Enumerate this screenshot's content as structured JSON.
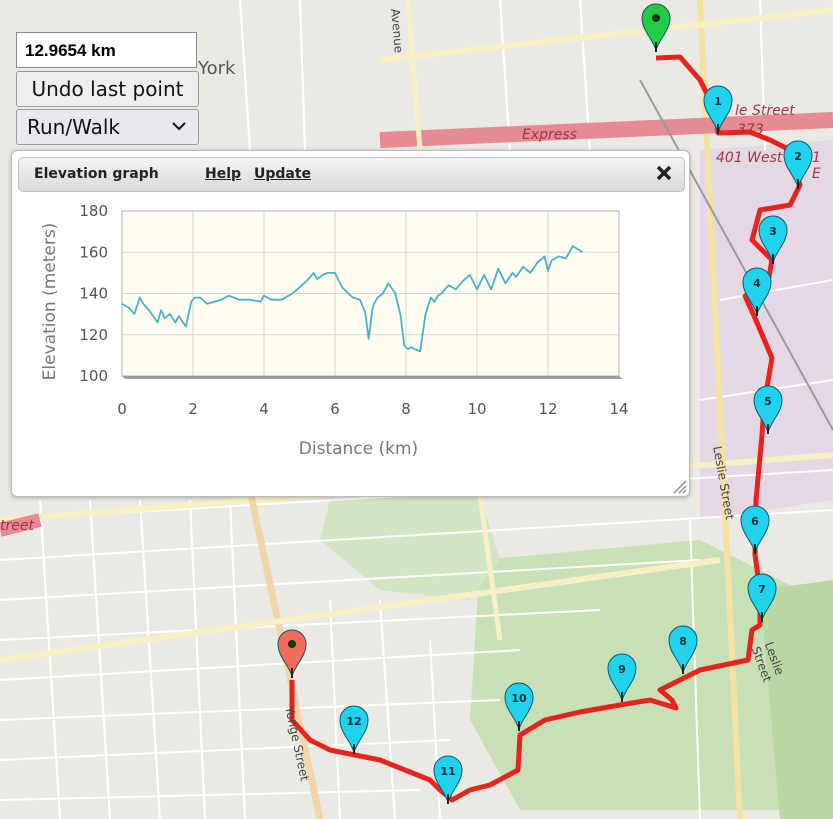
{
  "map": {
    "labels": {
      "york": "York",
      "avenue": "Avenue",
      "express": "Express",
      "le_street": "le Street",
      "route_373": "373",
      "route_401": "401 West",
      "street_left": "treet",
      "leslie_1": "Leslie Street",
      "leslie_2": "Leslie Street",
      "yonge": "Yonge Street",
      "route_1": "1 E"
    },
    "markers": [
      "1",
      "2",
      "3",
      "4",
      "5",
      "6",
      "7",
      "8",
      "9",
      "10",
      "11",
      "12"
    ],
    "colors": {
      "route": "#e8231f",
      "marker_blue": "#1fd3ee",
      "start": "#22cc44",
      "end": "#f26b5b"
    }
  },
  "controls": {
    "distance": "12.9654 km",
    "undo_label": "Undo last point",
    "mode_selected": "Run/Walk"
  },
  "elevation_panel": {
    "title": "Elevation graph",
    "help": "Help",
    "update": "Update"
  },
  "chart_data": {
    "type": "line",
    "xlabel": "Distance (km)",
    "ylabel": "Elevation (meters)",
    "xlim": [
      0,
      14
    ],
    "ylim": [
      100,
      180
    ],
    "xticks": [
      0,
      2,
      4,
      6,
      8,
      10,
      12,
      14
    ],
    "yticks": [
      100,
      120,
      140,
      160,
      180
    ],
    "grid": true,
    "color": "#4ab0c8",
    "series": [
      {
        "x": [
          0,
          0.2,
          0.35,
          0.5,
          0.6,
          0.8,
          1.0,
          1.1,
          1.2,
          1.35,
          1.5,
          1.6,
          1.8,
          1.95,
          2.05,
          2.2,
          2.4,
          2.6,
          2.8,
          3.0,
          3.3,
          3.6,
          3.9,
          4.0,
          4.2,
          4.5,
          4.8,
          5.0,
          5.2,
          5.4,
          5.5,
          5.65,
          5.8,
          6.0,
          6.2,
          6.5,
          6.7,
          6.85,
          6.95,
          7.05,
          7.1,
          7.2,
          7.35,
          7.5,
          7.7,
          7.85,
          7.95,
          8.05,
          8.15,
          8.25,
          8.4,
          8.55,
          8.7,
          8.8,
          8.9,
          9.0,
          9.2,
          9.4,
          9.6,
          9.8,
          10.0,
          10.2,
          10.4,
          10.6,
          10.8,
          11.0,
          11.1,
          11.3,
          11.5,
          11.7,
          11.9,
          12.0,
          12.1,
          12.3,
          12.5,
          12.7,
          12.97
        ],
        "y": [
          135,
          133,
          130,
          138,
          135,
          131,
          126,
          132,
          128,
          130,
          126,
          129,
          124,
          136,
          138,
          138,
          135,
          136,
          137,
          139,
          137,
          137,
          136,
          139,
          137,
          137,
          140,
          143,
          146,
          150,
          147,
          149,
          150,
          150,
          143,
          138,
          137,
          131,
          118,
          132,
          135,
          138,
          140,
          145,
          140,
          129,
          115,
          113,
          114,
          113,
          112,
          130,
          138,
          136,
          139,
          140,
          144,
          142,
          146,
          149,
          142,
          149,
          142,
          152,
          145,
          150,
          148,
          153,
          150,
          155,
          158,
          151,
          156,
          158,
          157,
          163,
          160
        ]
      }
    ]
  }
}
